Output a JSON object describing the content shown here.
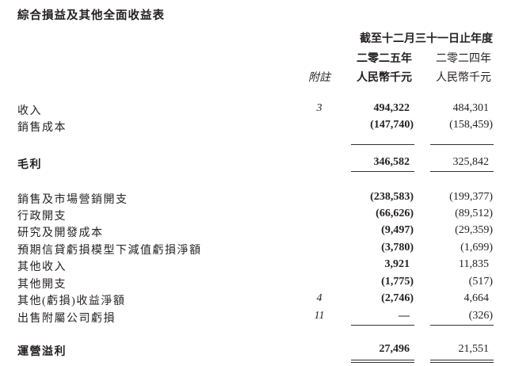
{
  "title": "綜合損益及其他全面收益表",
  "header": {
    "period": "截至十二月三十一日止年度",
    "year_current": "二零二五年",
    "year_prior": "二零二四年",
    "note_label": "附註",
    "unit_current": "人民幣千元",
    "unit_prior": "人民幣千元"
  },
  "rows": [
    {
      "label": "收入",
      "note": "3",
      "current": "494,322",
      "prior": "484,301"
    },
    {
      "label": "銷售成本",
      "note": "",
      "current": "(147,740)",
      "prior": "(158,459)"
    },
    {
      "label": "毛利",
      "note": "",
      "current": "346,582",
      "prior": "325,842"
    },
    {
      "label": "銷售及市場營銷開支",
      "note": "",
      "current": "(238,583)",
      "prior": "(199,377)"
    },
    {
      "label": "行政開支",
      "note": "",
      "current": "(66,626)",
      "prior": "(89,512)"
    },
    {
      "label": "研究及開發成本",
      "note": "",
      "current": "(9,497)",
      "prior": "(29,359)"
    },
    {
      "label": "預期信貸虧損模型下減值虧損淨額",
      "note": "",
      "current": "(3,780)",
      "prior": "(1,699)"
    },
    {
      "label": "其他收入",
      "note": "",
      "current": "3,921",
      "prior": "11,835"
    },
    {
      "label": "其他開支",
      "note": "",
      "current": "(1,775)",
      "prior": "(517)"
    },
    {
      "label": "其他(虧損)收益淨額",
      "note": "4",
      "current": "(2,746)",
      "prior": "4,664"
    },
    {
      "label": "出售附屬公司虧損",
      "note": "11",
      "current": "—",
      "prior": "(326)"
    },
    {
      "label": "運營溢利",
      "note": "",
      "current": "27,496",
      "prior": "21,551"
    }
  ]
}
